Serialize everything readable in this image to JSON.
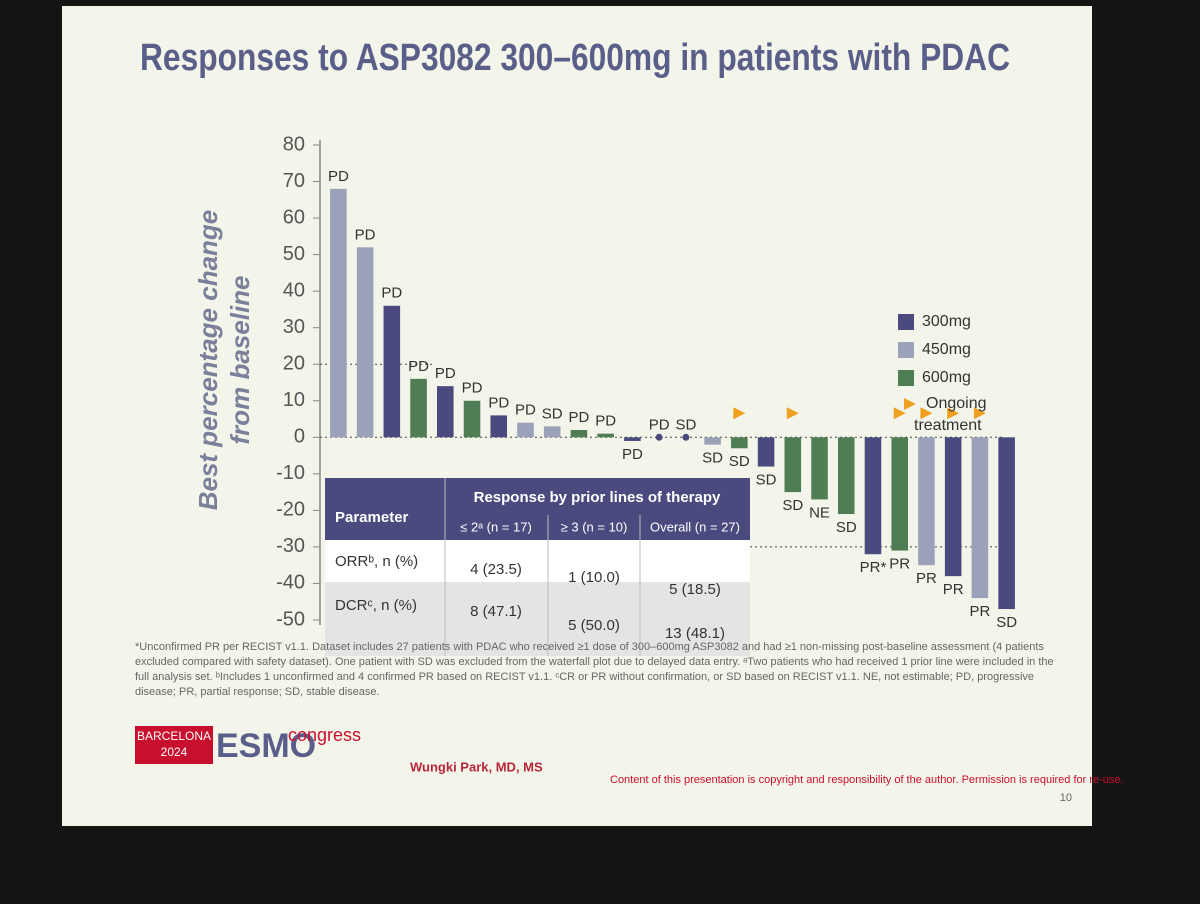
{
  "chart_data": {
    "type": "waterfall",
    "title": "Responses to ASP3082 300–600mg in patients with PDAC",
    "ylabel": [
      "Best percentage change",
      "from baseline"
    ],
    "ylim": [
      -50,
      80
    ],
    "yticks": [
      -50,
      -40,
      -30,
      -20,
      -10,
      0,
      10,
      20,
      30,
      40,
      50,
      60,
      70,
      80
    ],
    "reference_lines": [
      20,
      0,
      -30
    ],
    "legend": [
      {
        "name": "300mg",
        "color": "#4a4a7e"
      },
      {
        "name": "450mg",
        "color": "#9ba1b9"
      },
      {
        "name": "600mg",
        "color": "#4f7e55"
      }
    ],
    "ongoing_label": "Ongoing treatment",
    "ongoing_color": "#f0a020",
    "values": [
      68,
      52,
      36,
      16,
      14,
      10,
      6,
      4,
      3,
      2,
      1,
      -1,
      0,
      0,
      -2,
      -3,
      -8,
      -15,
      -17,
      -21,
      -32,
      -31,
      -35,
      -38,
      -44,
      -47
    ],
    "dose": [
      "450mg",
      "450mg",
      "300mg",
      "600mg",
      "300mg",
      "600mg",
      "300mg",
      "450mg",
      "450mg",
      "600mg",
      "600mg",
      "300mg",
      "300mg",
      "300mg",
      "450mg",
      "600mg",
      "300mg",
      "600mg",
      "600mg",
      "600mg",
      "300mg",
      "600mg",
      "450mg",
      "300mg",
      "450mg",
      "300mg"
    ],
    "response": [
      "PD",
      "PD",
      "PD",
      "PD",
      "PD",
      "PD",
      "PD",
      "PD",
      "SD",
      "PD",
      "PD",
      "PD",
      "PD",
      "SD",
      "SD",
      "SD",
      "SD",
      "SD",
      "NE",
      "SD",
      "PR*",
      "PR",
      "PR",
      "PR",
      "PR",
      "SD"
    ],
    "ongoing": [
      false,
      false,
      false,
      false,
      false,
      false,
      false,
      false,
      false,
      false,
      false,
      false,
      false,
      false,
      false,
      true,
      false,
      true,
      false,
      false,
      false,
      true,
      true,
      true,
      true,
      false
    ],
    "table": {
      "parameter_header": "Parameter",
      "group_header": "Response by prior lines of therapy",
      "columns": [
        "≤ 2ᵃ (n = 17)",
        "≥ 3 (n = 10)",
        "Overall (n = 27)"
      ],
      "rows": [
        [
          "ORRᵇ, n (%)",
          "4 (23.5)",
          "1 (10.0)",
          "5 (18.5)"
        ],
        [
          "DCRᶜ, n (%)",
          "8 (47.1)",
          "5 (50.0)",
          "13 (48.1)"
        ]
      ]
    }
  },
  "footnote": "*Unconfirmed PR per RECIST v1.1. Dataset includes 27 patients with PDAC who received ≥1 dose of 300–600mg ASP3082 and had ≥1 non-missing post-baseline assessment (4 patients excluded compared with safety dataset). One patient with SD was excluded from the waterfall plot due to delayed data entry. ᵃTwo patients who had received 1 prior line were included in the full analysis set. ᵇIncludes 1 unconfirmed and 4 confirmed PR based on RECIST v1.1. ᶜCR or PR without confirmation, or SD based on RECIST v1.1. NE, not estimable; PD, progressive disease; PR, partial response; SD, stable disease.",
  "logo": {
    "city": "BARCELONA",
    "year": "2024",
    "brand": "ESMO",
    "word": "congress"
  },
  "author": "Wungki Park, MD, MS",
  "copyright": "Content of this presentation is copyright and responsibility of the author. Permission is required for re-use.",
  "page_number": "10"
}
